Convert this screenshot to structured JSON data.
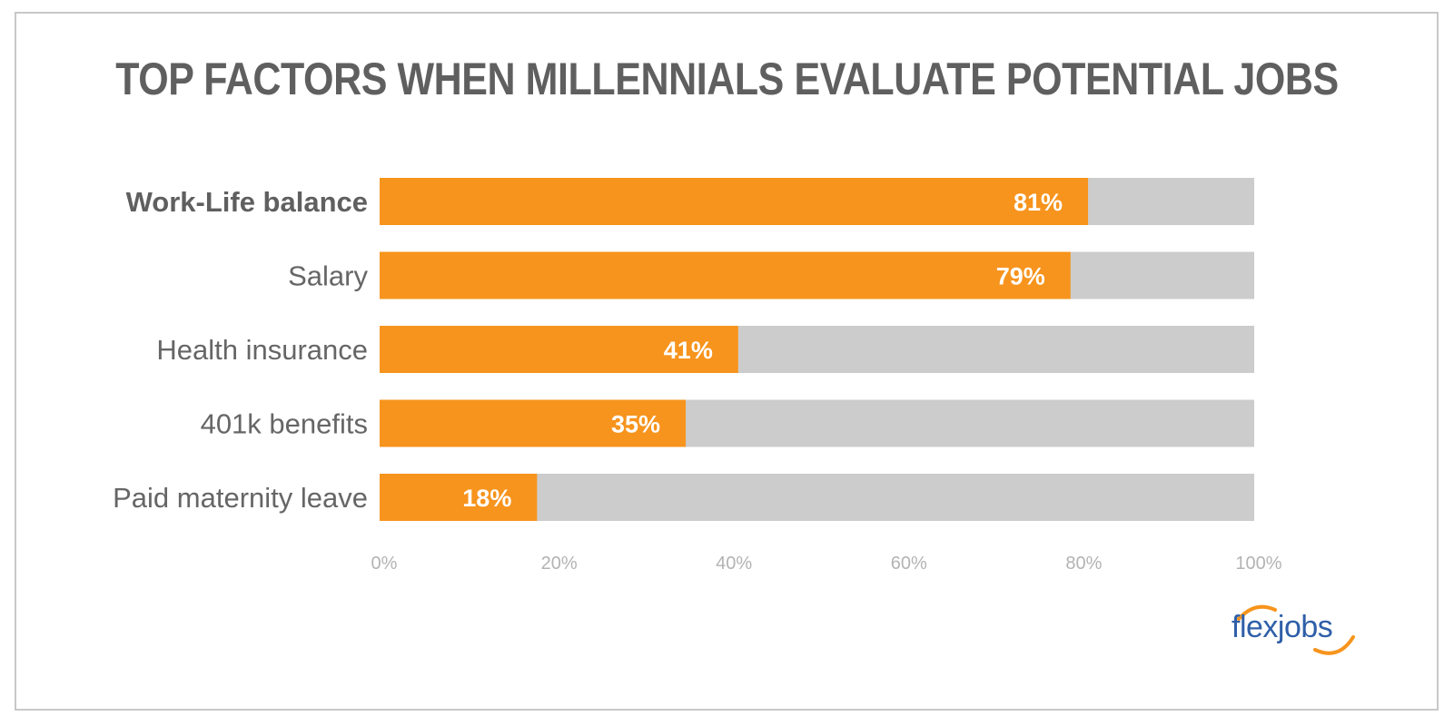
{
  "chart_data": {
    "type": "bar",
    "orientation": "horizontal",
    "stacked_background": true,
    "title": "TOP FACTORS WHEN MILLENNIALS EVALUATE POTENTIAL JOBS",
    "categories": [
      "Work-Life balance",
      "Salary",
      "Health insurance",
      "401k benefits",
      "Paid maternity leave"
    ],
    "values": [
      81,
      79,
      41,
      35,
      18
    ],
    "value_labels": [
      "81%",
      "79%",
      "41%",
      "35%",
      "18%"
    ],
    "xlim": [
      0,
      100
    ],
    "x_ticks": [
      "0%",
      "20%",
      "40%",
      "60%",
      "80%",
      "100%"
    ],
    "grid": false,
    "colors": {
      "bar": "#f7941d",
      "track": "#cccccc"
    }
  },
  "brand": {
    "logo_text": "flexjobs",
    "colors": {
      "text": "#2f5fa8",
      "swoosh": "#f7941d"
    }
  }
}
